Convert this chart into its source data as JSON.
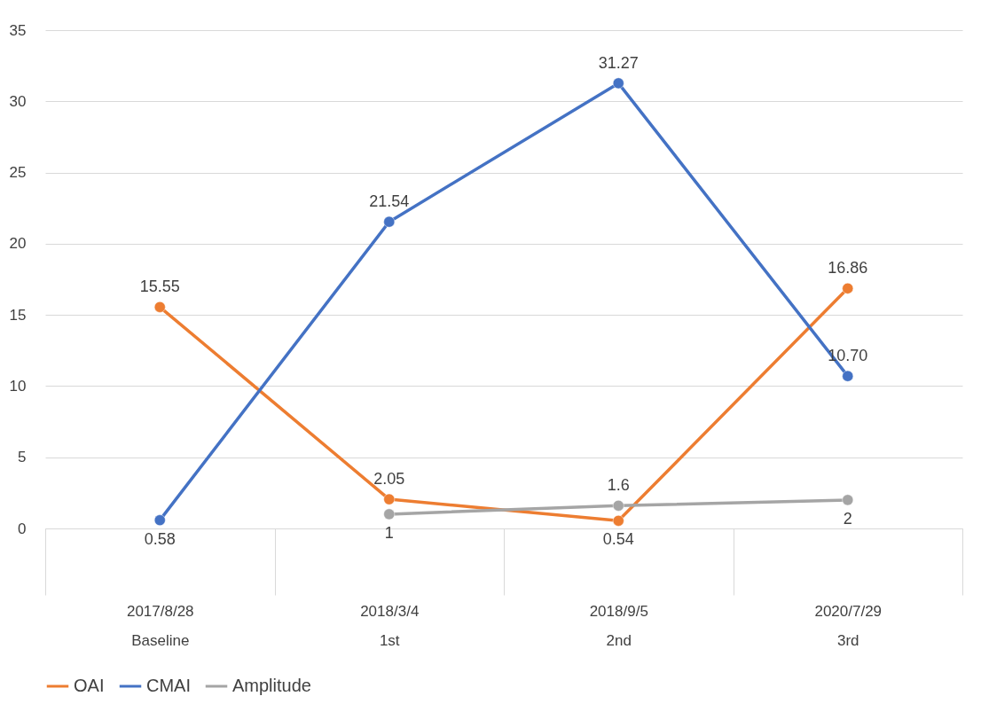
{
  "chart_data": {
    "type": "line",
    "categories": [
      "2017/8/28\nBaseline",
      "2018/3/4\n1st",
      "2018/9/5\n2nd",
      "2020/7/29\n3rd"
    ],
    "series": [
      {
        "name": "OAI",
        "color": "#ed7d31",
        "values": [
          15.55,
          2.05,
          0.54,
          16.86
        ],
        "value_labels": [
          "15.55",
          "2.05",
          "0.54",
          "16.86"
        ]
      },
      {
        "name": "CMAI",
        "color": "#4472c4",
        "values": [
          0.58,
          21.54,
          31.27,
          10.7
        ],
        "value_labels": [
          "0.58",
          "21.54",
          "31.27",
          "10.70"
        ]
      },
      {
        "name": "Amplitude",
        "color": "#a5a5a5",
        "values": [
          null,
          1,
          1.6,
          2
        ],
        "value_labels": [
          null,
          "1",
          "1.6",
          "2"
        ]
      }
    ],
    "ylim": [
      0,
      35
    ],
    "yticks": [
      0,
      5,
      10,
      15,
      20,
      25,
      30,
      35
    ],
    "grid": "y",
    "legend": "bottom",
    "marker": "circle",
    "line_style": "solid"
  }
}
